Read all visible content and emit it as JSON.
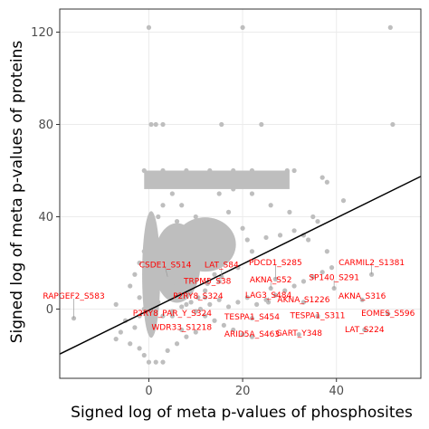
{
  "chart_data": {
    "type": "scatter",
    "title": "",
    "xlabel": "Signed log of meta p-values of phosphosites",
    "ylabel": "Signed log of meta p-values of proteins",
    "xlim": [
      -19,
      58
    ],
    "ylim": [
      -30,
      130
    ],
    "xticks": [
      0,
      20,
      40
    ],
    "yticks": [
      0,
      40,
      80,
      120
    ],
    "xtick_labels": [
      "0",
      "20",
      "40"
    ],
    "ytick_labels": [
      "0",
      "40",
      "80",
      "120"
    ],
    "grid": true,
    "legend": "none",
    "point_color": "#bebebe",
    "label_color": "#ff0000",
    "line_color": "#000000",
    "background": "#ffffff",
    "panel_border": "#333333",
    "gridline_color": "#ebebeb",
    "regression_line": {
      "x": [
        -19,
        58
      ],
      "y": [
        -19.5,
        57.5
      ]
    },
    "points": [
      [
        0,
        122
      ],
      [
        20,
        122
      ],
      [
        51.5,
        122
      ],
      [
        0.5,
        80
      ],
      [
        1.5,
        80
      ],
      [
        3,
        80
      ],
      [
        15.5,
        80
      ],
      [
        24,
        80
      ],
      [
        52,
        80
      ],
      [
        -1,
        60
      ],
      [
        3,
        60
      ],
      [
        8,
        60
      ],
      [
        13,
        60
      ],
      [
        18,
        60
      ],
      [
        22,
        60
      ],
      [
        26,
        59
      ],
      [
        29.5,
        60
      ],
      [
        31,
        60
      ],
      [
        37,
        57
      ],
      [
        38,
        55
      ],
      [
        41.5,
        47
      ],
      [
        35,
        40
      ],
      [
        36,
        38
      ],
      [
        31,
        34
      ],
      [
        28,
        32
      ],
      [
        25,
        31
      ],
      [
        33,
        32
      ],
      [
        21,
        30
      ],
      [
        18,
        27
      ],
      [
        14,
        22
      ],
      [
        11,
        18
      ],
      [
        9,
        16
      ],
      [
        7,
        12
      ],
      [
        5,
        10
      ],
      [
        3,
        8
      ],
      [
        -7,
        2
      ],
      [
        -5,
        -5
      ],
      [
        -3,
        -8
      ],
      [
        -6,
        -10
      ],
      [
        -7,
        -13
      ],
      [
        -4,
        -15
      ],
      [
        -2,
        -17
      ],
      [
        0,
        -23
      ],
      [
        1.5,
        -23
      ],
      [
        3,
        -23
      ],
      [
        -1,
        -20
      ],
      [
        4,
        -18
      ],
      [
        6,
        -15
      ],
      [
        8,
        -12
      ],
      [
        10,
        -10
      ],
      [
        12,
        8
      ],
      [
        14,
        15
      ],
      [
        16,
        20
      ],
      [
        13,
        30
      ],
      [
        10,
        40
      ],
      [
        7,
        45
      ],
      [
        5,
        50
      ],
      [
        2,
        55
      ],
      [
        12,
        5
      ],
      [
        15,
        12
      ],
      [
        19,
        18
      ],
      [
        22,
        25
      ],
      [
        20,
        35
      ],
      [
        17,
        42
      ],
      [
        15,
        50
      ],
      [
        18,
        52
      ],
      [
        22,
        50
      ],
      [
        26,
        45
      ],
      [
        30,
        42
      ],
      [
        34,
        30
      ],
      [
        38,
        25
      ],
      [
        2,
        3
      ],
      [
        4,
        6
      ],
      [
        6,
        4
      ],
      [
        8,
        2
      ],
      [
        10,
        -1
      ],
      [
        12,
        -3
      ],
      [
        14,
        -5
      ],
      [
        16,
        -7
      ],
      [
        18,
        -9
      ],
      [
        20,
        -11
      ],
      [
        1,
        -5
      ],
      [
        3,
        -3
      ],
      [
        5,
        -1
      ],
      [
        7,
        1
      ],
      [
        9,
        3
      ],
      [
        11,
        0
      ],
      [
        13,
        2
      ],
      [
        15,
        4
      ],
      [
        17,
        1
      ],
      [
        19,
        3
      ],
      [
        21,
        5
      ],
      [
        23,
        2
      ],
      [
        25,
        4
      ],
      [
        27,
        6
      ],
      [
        29,
        8
      ],
      [
        31,
        10
      ],
      [
        33,
        12
      ],
      [
        35,
        14
      ],
      [
        37,
        16
      ],
      [
        39,
        18
      ],
      [
        0,
        30
      ],
      [
        1,
        35
      ],
      [
        2,
        40
      ],
      [
        3,
        45
      ],
      [
        4,
        28
      ],
      [
        5,
        33
      ],
      [
        6,
        38
      ],
      [
        7,
        25
      ],
      [
        8,
        30
      ],
      [
        9,
        35
      ],
      [
        -2,
        20
      ],
      [
        -1,
        25
      ],
      [
        -3,
        15
      ],
      [
        -4,
        10
      ],
      [
        -2,
        5
      ],
      [
        -1,
        0
      ],
      [
        -2,
        -3
      ],
      [
        0,
        15
      ],
      [
        1,
        20
      ],
      [
        2,
        25
      ]
    ],
    "labels": [
      {
        "text": "CARMIL2_S1381",
        "x": 47.5,
        "y": 15,
        "lx": 47.5,
        "ly": 19
      },
      {
        "text": "CSDE1_S514",
        "x": 4,
        "y": 14,
        "lx": 3.5,
        "ly": 18
      },
      {
        "text": "LAT_S84",
        "x": 15.5,
        "y": 14,
        "lx": 15.5,
        "ly": 18
      },
      {
        "text": "PDCD1_S285",
        "x": 27,
        "y": 13,
        "lx": 27,
        "ly": 19
      },
      {
        "text": "SP140_S291",
        "x": 39.5,
        "y": 9,
        "lx": 39.5,
        "ly": 12.5
      },
      {
        "text": "TRPM5_S38",
        "x": 12.5,
        "y": 11,
        "lx": 12.5,
        "ly": 11
      },
      {
        "text": "AKNA_S52",
        "x": 26,
        "y": 9,
        "lx": 26,
        "ly": 11.5
      },
      {
        "text": "RAPGEF2_S583",
        "x": -16,
        "y": -4,
        "lx": -16,
        "ly": 4.5
      },
      {
        "text": "P2RY8_S324",
        "x": 10.5,
        "y": 5,
        "lx": 10.5,
        "ly": 4.5
      },
      {
        "text": "LAG3_S484",
        "x": 25.5,
        "y": 3,
        "lx": 25.5,
        "ly": 5
      },
      {
        "text": "AKNA_S1226",
        "x": 33,
        "y": 3,
        "lx": 33,
        "ly": 3
      },
      {
        "text": "AKNA_S316",
        "x": 45.5,
        "y": 4,
        "lx": 45.5,
        "ly": 4.5
      },
      {
        "text": "P2RY8_PAR_Y_S324",
        "x": 5,
        "y": -3,
        "lx": 5,
        "ly": -3
      },
      {
        "text": "TESPA1_S454",
        "x": 22,
        "y": -4,
        "lx": 22,
        "ly": -4.5
      },
      {
        "text": "TESPA1_S311",
        "x": 36,
        "y": -3,
        "lx": 36,
        "ly": -4
      },
      {
        "text": "EOMES_S596",
        "x": 51,
        "y": -2,
        "lx": 51,
        "ly": -3
      },
      {
        "text": "WDR33_S1218",
        "x": 7,
        "y": -9,
        "lx": 7,
        "ly": -9
      },
      {
        "text": "ARID5A_S463",
        "x": 22,
        "y": -12,
        "lx": 22,
        "ly": -12
      },
      {
        "text": "GART_Y348",
        "x": 32,
        "y": -11,
        "lx": 32,
        "ly": -11.5
      },
      {
        "text": "LAT_S224",
        "x": 46,
        "y": -9,
        "lx": 46,
        "ly": -10
      }
    ]
  }
}
